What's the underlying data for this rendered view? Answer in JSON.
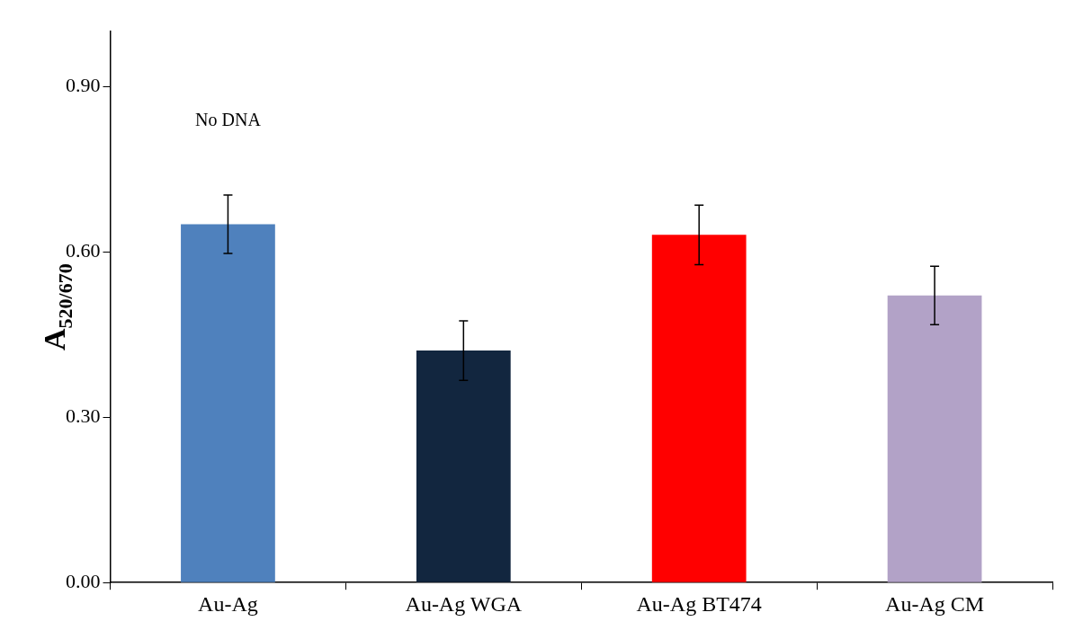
{
  "chart_data": {
    "type": "bar",
    "ylabel": "A$_{520/670}$",
    "categories": [
      "Au-Ag",
      "Au-Ag WGA",
      "Au-Ag BT474",
      "Au-Ag CM"
    ],
    "values": [
      0.65,
      0.421,
      0.631,
      0.521
    ],
    "colors": [
      "#4f81bd",
      "#12263f",
      "#ff0000",
      "#b2a2c7"
    ],
    "errors": [
      0.053,
      0.054,
      0.054,
      0.053
    ],
    "ylim": [
      0,
      1
    ],
    "yticks": [
      {
        "value": 0,
        "label": "0.00"
      },
      {
        "value": 0.3,
        "label": "0.30"
      },
      {
        "value": 0.6,
        "label": "0.60"
      },
      {
        "value": 0.9,
        "label": "0.90"
      }
    ],
    "annotations": [
      "No DNA"
    ],
    "grid": false,
    "legend": false
  }
}
